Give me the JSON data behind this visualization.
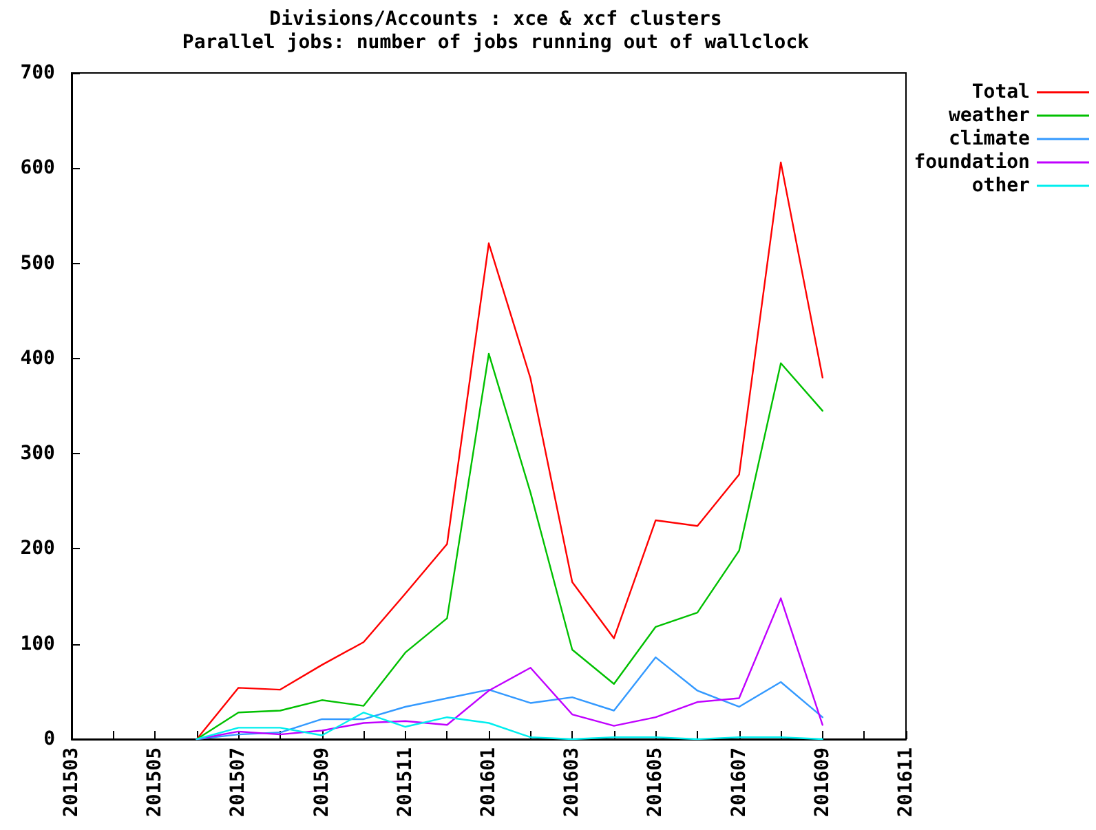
{
  "chart_data": {
    "type": "line",
    "title": "Divisions/Accounts : xce & xcf clusters",
    "subtitle": "Parallel jobs: number of jobs running out of wallclock",
    "categories": [
      "201503",
      null,
      "201505",
      null,
      "201507",
      null,
      "201509",
      null,
      "201511",
      null,
      "201601",
      null,
      "201603",
      null,
      "201605",
      null,
      "201607",
      null,
      "201609",
      null,
      "201611"
    ],
    "series": [
      {
        "name": "Total",
        "color": "#ff0000",
        "values": [
          null,
          null,
          null,
          0,
          54,
          52,
          78,
          102,
          153,
          205,
          521,
          379,
          165,
          106,
          230,
          224,
          278,
          606,
          380,
          null,
          null
        ]
      },
      {
        "name": "weather",
        "color": "#00c000",
        "values": [
          null,
          null,
          null,
          0,
          28,
          30,
          41,
          35,
          91,
          127,
          405,
          259,
          94,
          58,
          118,
          133,
          198,
          395,
          345,
          null,
          null
        ]
      },
      {
        "name": "climate",
        "color": "#3399ff",
        "values": [
          null,
          null,
          null,
          0,
          5,
          7,
          21,
          21,
          34,
          43,
          52,
          38,
          44,
          30,
          86,
          51,
          34,
          60,
          23,
          null,
          null
        ]
      },
      {
        "name": "foundation",
        "color": "#c000ff",
        "values": [
          null,
          null,
          null,
          0,
          8,
          5,
          9,
          17,
          19,
          15,
          51,
          75,
          26,
          14,
          23,
          39,
          43,
          148,
          15,
          null,
          null
        ]
      },
      {
        "name": "other",
        "color": "#00eeee",
        "values": [
          null,
          null,
          null,
          0,
          12,
          12,
          4,
          28,
          13,
          23,
          17,
          2,
          0,
          2,
          2,
          0,
          2,
          2,
          0,
          null,
          null
        ]
      }
    ],
    "ylim": [
      0,
      700
    ],
    "yticks": [
      0,
      100,
      200,
      300,
      400,
      500,
      600,
      700
    ],
    "grid": false,
    "legend": "top right",
    "marker": "none",
    "line_style": "solid"
  }
}
